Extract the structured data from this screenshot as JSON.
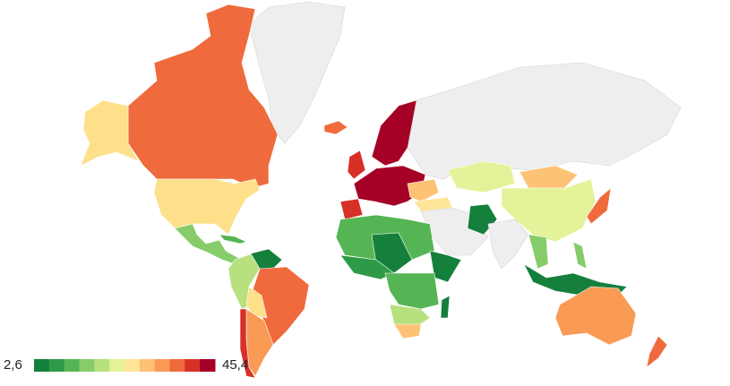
{
  "map": {
    "legend": {
      "min": {
        "value": 2.6,
        "label": "2,6"
      },
      "max": {
        "value": 45.4,
        "label": "45,4"
      },
      "colors": [
        "#157f3c",
        "#2e9a48",
        "#55b554",
        "#86cc6a",
        "#b7e07f",
        "#e4f29a",
        "#fee597",
        "#fdc273",
        "#f99a55",
        "#ef6b3d",
        "#d73027",
        "#a50026"
      ]
    }
  }
}
